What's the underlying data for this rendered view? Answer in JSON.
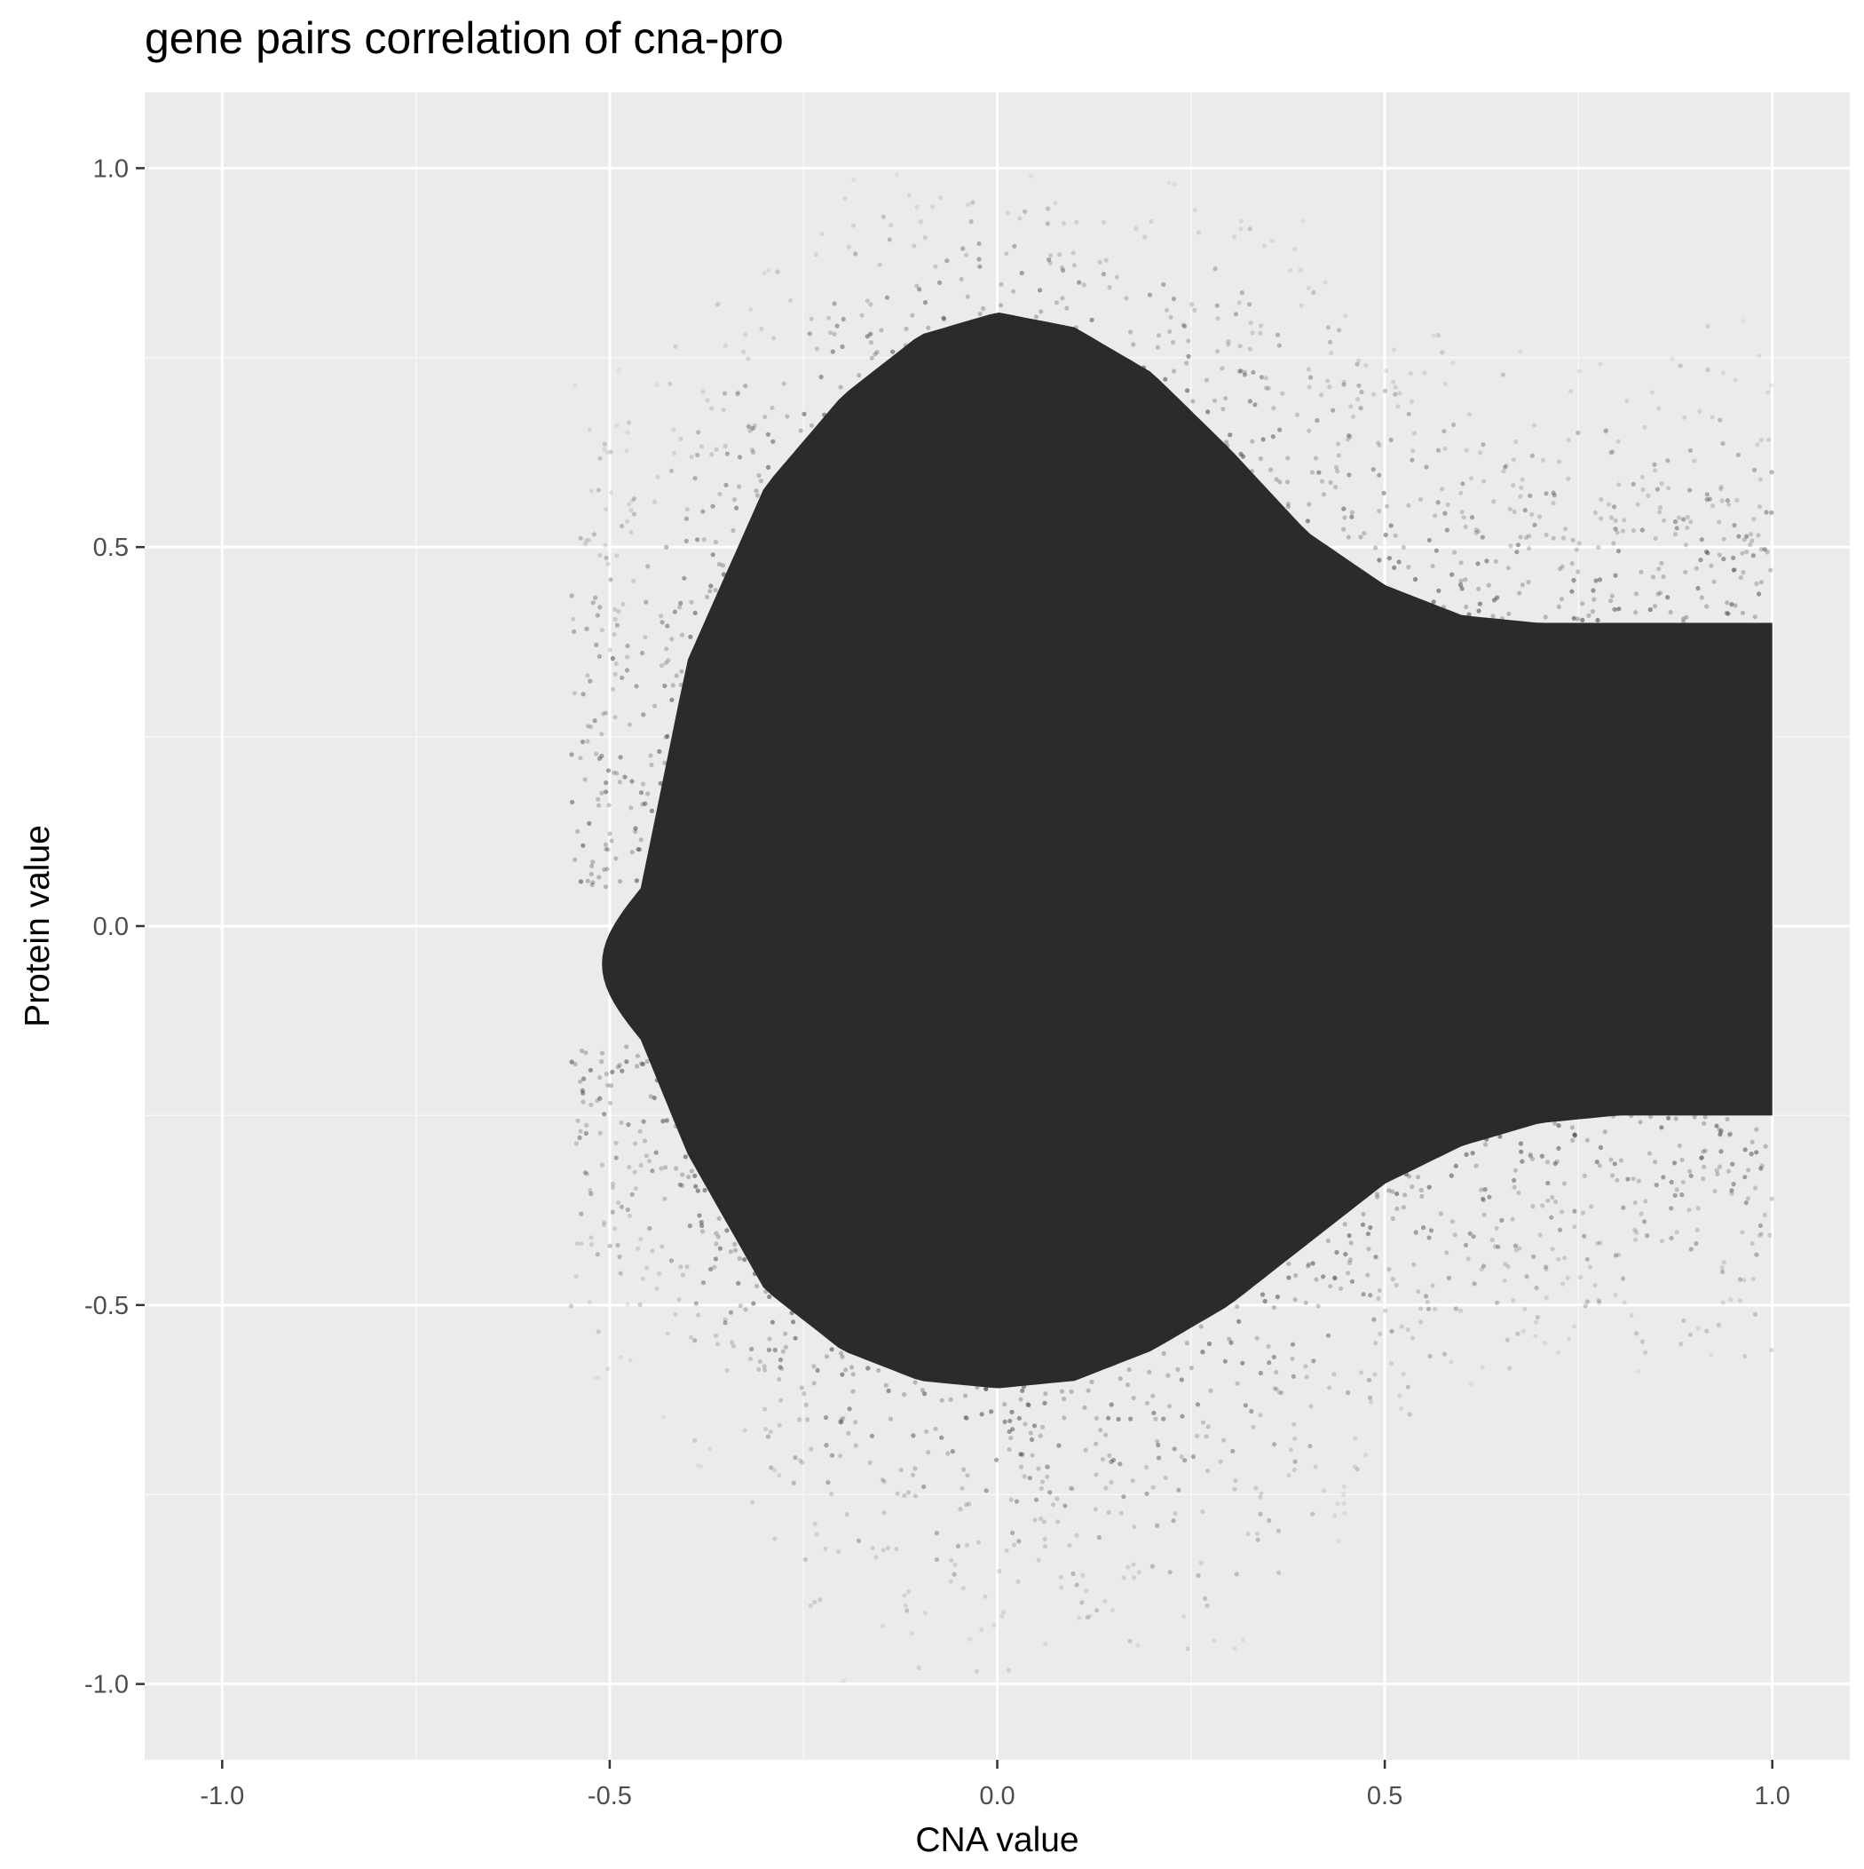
{
  "chart_data": {
    "type": "scatter",
    "title": "gene pairs correlation of cna-pro",
    "xlabel": "CNA value",
    "ylabel": "Protein value",
    "xlim": [
      -1.1,
      1.1
    ],
    "ylim": [
      -1.1,
      1.1
    ],
    "x_ticks": [
      -1.0,
      -0.5,
      0.0,
      0.5,
      1.0
    ],
    "x_tick_labels": [
      "-1.0",
      "-0.5",
      "0.0",
      "0.5",
      "1.0"
    ],
    "y_ticks": [
      -1.0,
      -0.5,
      0.0,
      0.5,
      1.0
    ],
    "y_tick_labels": [
      "-1.0",
      "-0.5",
      "0.0",
      "0.5",
      "1.0"
    ],
    "grid": true,
    "legend": "none",
    "colors": {
      "panel_background": "#ebebeb",
      "grid_major": "#ffffff",
      "grid_minor": "#f7f7f7",
      "points": "#2b2b2b",
      "axis_text": "#4d4d4d",
      "axis_title": "#000000"
    },
    "point_cloud": {
      "description_free_note": "",
      "x_min": -0.55,
      "x_max": 1.0,
      "dense_core_x": [
        -0.46,
        -0.4,
        -0.3,
        -0.2,
        -0.1,
        0.0,
        0.1,
        0.2,
        0.3,
        0.4,
        0.5,
        0.6,
        0.7,
        0.8,
        0.9,
        1.0
      ],
      "dense_core_y_upper": [
        0.05,
        0.35,
        0.58,
        0.7,
        0.78,
        0.81,
        0.79,
        0.73,
        0.63,
        0.52,
        0.45,
        0.41,
        0.4,
        0.4,
        0.4,
        0.4
      ],
      "dense_core_y_lower": [
        -0.15,
        -0.3,
        -0.48,
        -0.56,
        -0.6,
        -0.61,
        -0.6,
        -0.56,
        -0.5,
        -0.42,
        -0.34,
        -0.29,
        -0.26,
        -0.25,
        -0.25,
        -0.25
      ],
      "sparse_y_upper": [
        0.75,
        0.8,
        0.9,
        1.0,
        1.0,
        1.0,
        1.0,
        1.0,
        1.0,
        0.95,
        0.85,
        0.8,
        0.8,
        0.8,
        0.8,
        0.8
      ],
      "sparse_y_lower": [
        -0.6,
        -0.7,
        -0.8,
        -1.0,
        -1.0,
        -1.0,
        -1.0,
        -1.0,
        -1.0,
        -0.9,
        -0.75,
        -0.65,
        -0.6,
        -0.6,
        -0.6,
        -0.6
      ]
    }
  }
}
